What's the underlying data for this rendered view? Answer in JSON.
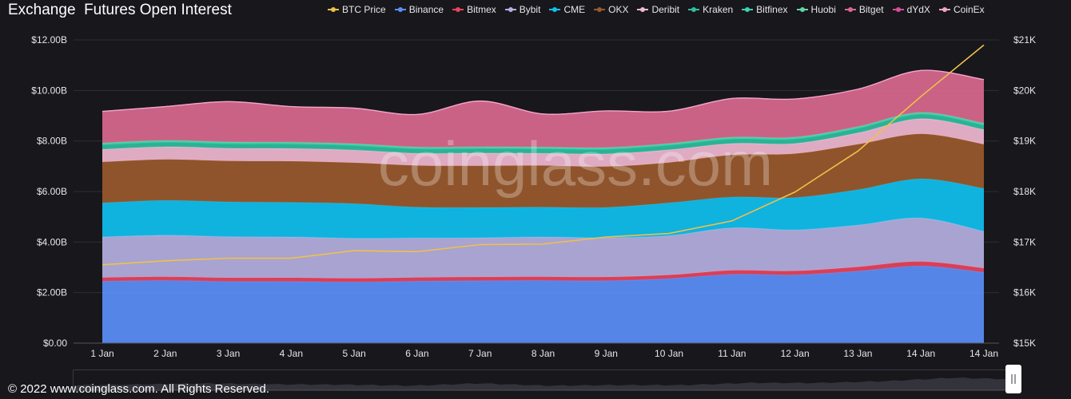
{
  "title": "Exchange  Futures Open Interest",
  "footer": "© 2022 www.coinglass.com. All Rights Reserved.",
  "watermark": "coinglass.com",
  "chart_data": {
    "type": "area",
    "stacked": true,
    "title": "Exchange  Futures Open Interest",
    "categories": [
      "1 Jan",
      "2 Jan",
      "3 Jan",
      "4 Jan",
      "5 Jan",
      "6 Jan",
      "7 Jan",
      "8 Jan",
      "9 Jan",
      "10 Jan",
      "11 Jan",
      "12 Jan",
      "13 Jan",
      "14 Jan",
      "14 Jan"
    ],
    "y_left": {
      "range": [
        0,
        12000000000
      ],
      "ticks": [
        0,
        2000000000,
        4000000000,
        6000000000,
        8000000000,
        10000000000,
        12000000000
      ],
      "tick_labels": [
        "$0.00",
        "$2.00B",
        "$4.00B",
        "$6.00B",
        "$8.00B",
        "$10.00B",
        "$12.00B"
      ]
    },
    "y_right": {
      "range": [
        15000,
        21000
      ],
      "ticks": [
        15000,
        16000,
        17000,
        18000,
        19000,
        20000,
        21000
      ],
      "tick_labels": [
        "$15K",
        "$16K",
        "$17K",
        "$18K",
        "$19K",
        "$20K",
        "$21K"
      ]
    },
    "grid": true,
    "legend_position": "top",
    "series": [
      {
        "name": "BTC Price",
        "kind": "line",
        "axis": "right",
        "color": "#f0c04a",
        "values": [
          16550,
          16630,
          16680,
          16680,
          16830,
          16810,
          16950,
          16960,
          17100,
          17170,
          17420,
          17990,
          18800,
          19880,
          20900
        ]
      },
      {
        "name": "Binance",
        "color": "#5b8ff9",
        "values": [
          2.45,
          2.48,
          2.44,
          2.44,
          2.42,
          2.45,
          2.47,
          2.48,
          2.47,
          2.55,
          2.72,
          2.7,
          2.85,
          3.05,
          2.8
        ]
      },
      {
        "name": "Bitmex",
        "color": "#e8445c",
        "values": [
          0.15,
          0.15,
          0.15,
          0.15,
          0.15,
          0.15,
          0.15,
          0.15,
          0.15,
          0.15,
          0.16,
          0.16,
          0.17,
          0.18,
          0.17
        ]
      },
      {
        "name": "Bybit",
        "color": "#b5b0e0",
        "values": [
          1.6,
          1.64,
          1.62,
          1.61,
          1.58,
          1.56,
          1.55,
          1.57,
          1.55,
          1.55,
          1.68,
          1.62,
          1.65,
          1.72,
          1.45
        ]
      },
      {
        "name": "CME",
        "color": "#10c0ef",
        "values": [
          1.35,
          1.38,
          1.38,
          1.37,
          1.37,
          1.22,
          1.2,
          1.18,
          1.2,
          1.3,
          1.22,
          1.28,
          1.4,
          1.55,
          1.7
        ]
      },
      {
        "name": "OKX",
        "color": "#9a5a2c",
        "values": [
          1.62,
          1.62,
          1.62,
          1.63,
          1.62,
          1.65,
          1.65,
          1.65,
          1.62,
          1.6,
          1.67,
          1.74,
          1.8,
          1.78,
          1.75
        ]
      },
      {
        "name": "Deribit",
        "color": "#f0b9d0",
        "values": [
          0.5,
          0.5,
          0.5,
          0.5,
          0.5,
          0.48,
          0.5,
          0.48,
          0.5,
          0.5,
          0.45,
          0.4,
          0.45,
          0.6,
          0.58
        ]
      },
      {
        "name": "Kraken",
        "color": "#2fbf9f",
        "values": [
          0.18,
          0.18,
          0.18,
          0.18,
          0.18,
          0.18,
          0.18,
          0.18,
          0.18,
          0.18,
          0.18,
          0.18,
          0.18,
          0.18,
          0.18
        ]
      },
      {
        "name": "Bitfinex",
        "color": "#3bd3b0",
        "values": [
          0.05,
          0.05,
          0.05,
          0.05,
          0.05,
          0.05,
          0.05,
          0.05,
          0.05,
          0.05,
          0.05,
          0.05,
          0.05,
          0.05,
          0.05
        ]
      },
      {
        "name": "Huobi",
        "color": "#62d6a0",
        "values": [
          0.02,
          0.02,
          0.02,
          0.02,
          0.02,
          0.02,
          0.02,
          0.02,
          0.02,
          0.02,
          0.02,
          0.02,
          0.02,
          0.02,
          0.02
        ]
      },
      {
        "name": "Bitget",
        "color": "#d9698e",
        "values": [
          1.24,
          1.33,
          1.59,
          1.4,
          1.4,
          1.28,
          1.8,
          1.3,
          1.44,
          1.27,
          1.52,
          1.5,
          1.47,
          1.65,
          1.72
        ]
      },
      {
        "name": "dYdX",
        "color": "#d44f9c",
        "values": [
          0.005,
          0.005,
          0.005,
          0.005,
          0.005,
          0.005,
          0.005,
          0.005,
          0.005,
          0.005,
          0.005,
          0.005,
          0.005,
          0.005,
          0.005
        ]
      },
      {
        "name": "CoinEx",
        "color": "#f0a7c6",
        "values": [
          0.005,
          0.005,
          0.005,
          0.005,
          0.005,
          0.005,
          0.005,
          0.005,
          0.005,
          0.005,
          0.005,
          0.005,
          0.005,
          0.005,
          0.005
        ]
      }
    ],
    "value_unit_stack": "B USD"
  }
}
